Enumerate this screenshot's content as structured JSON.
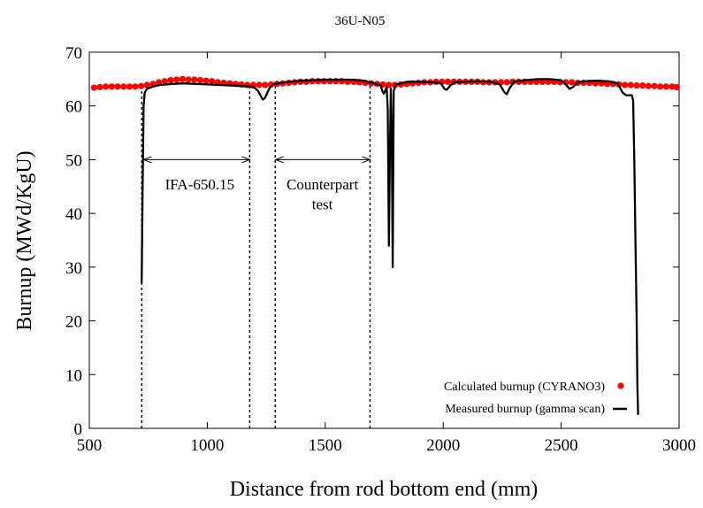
{
  "chart_data": {
    "type": "line",
    "title": "36U-N05",
    "xlabel": "Distance from rod bottom end (mm)",
    "ylabel": "Burnup (MWd/KgU)",
    "xlim": [
      500,
      3000
    ],
    "ylim": [
      0,
      70
    ],
    "xticks": [
      "500",
      "1000",
      "1500",
      "2000",
      "2500",
      "3000"
    ],
    "yticks": [
      "0",
      "10",
      "20",
      "30",
      "40",
      "50",
      "60",
      "70"
    ],
    "grid": false,
    "legend": "bottom-right",
    "series": [
      {
        "name": "Calculated burnup (CYRANO3)",
        "kind": "points",
        "color": "#ff0000",
        "x": [
          520,
          545,
          570,
          595,
          620,
          645,
          670,
          695,
          720,
          745,
          770,
          795,
          820,
          845,
          870,
          895,
          920,
          945,
          970,
          995,
          1020,
          1045,
          1070,
          1095,
          1120,
          1145,
          1170,
          1195,
          1220,
          1245,
          1270,
          1295,
          1320,
          1345,
          1370,
          1395,
          1420,
          1445,
          1470,
          1495,
          1520,
          1545,
          1570,
          1595,
          1620,
          1645,
          1670,
          1695,
          1720,
          1745,
          1770,
          1795,
          1820,
          1845,
          1870,
          1895,
          1920,
          1945,
          1970,
          1995,
          2020,
          2045,
          2070,
          2095,
          2120,
          2145,
          2170,
          2195,
          2220,
          2245,
          2270,
          2295,
          2320,
          2345,
          2370,
          2395,
          2420,
          2445,
          2470,
          2495,
          2520,
          2545,
          2570,
          2595,
          2620,
          2645,
          2670,
          2695,
          2720,
          2745,
          2770,
          2795,
          2820,
          2845,
          2870,
          2895,
          2920,
          2945,
          2970,
          2990
        ],
        "y": [
          63.4,
          63.5,
          63.6,
          63.6,
          63.6,
          63.6,
          63.6,
          63.6,
          63.7,
          63.9,
          64.1,
          64.4,
          64.6,
          64.8,
          64.9,
          65.0,
          64.9,
          64.9,
          64.8,
          64.7,
          64.6,
          64.4,
          64.3,
          64.2,
          64.1,
          64.0,
          63.9,
          63.9,
          63.9,
          63.9,
          64.0,
          64.1,
          64.2,
          64.3,
          64.4,
          64.5,
          64.5,
          64.6,
          64.6,
          64.6,
          64.6,
          64.6,
          64.6,
          64.5,
          64.5,
          64.4,
          64.3,
          64.2,
          64.1,
          64.0,
          63.9,
          63.9,
          64.0,
          64.1,
          64.2,
          64.3,
          64.4,
          64.4,
          64.5,
          64.5,
          64.5,
          64.5,
          64.5,
          64.5,
          64.5,
          64.5,
          64.4,
          64.4,
          64.4,
          64.4,
          64.4,
          64.5,
          64.5,
          64.5,
          64.5,
          64.5,
          64.5,
          64.5,
          64.5,
          64.4,
          64.4,
          64.4,
          64.3,
          64.3,
          64.3,
          64.2,
          64.2,
          64.1,
          64.1,
          64.0,
          63.9,
          63.9,
          63.8,
          63.8,
          63.7,
          63.7,
          63.6,
          63.6,
          63.6,
          63.5
        ]
      },
      {
        "name": "Measured burnup (gamma scan)",
        "kind": "line",
        "color": "#000000",
        "x": [
          722,
          726,
          730,
          735,
          745,
          770,
          800,
          850,
          900,
          950,
          1000,
          1050,
          1100,
          1150,
          1180,
          1200,
          1215,
          1225,
          1235,
          1245,
          1255,
          1265,
          1280,
          1300,
          1350,
          1400,
          1450,
          1500,
          1550,
          1600,
          1650,
          1700,
          1735,
          1742,
          1748,
          1754,
          1760,
          1765,
          1770,
          1774,
          1778,
          1782,
          1786,
          1790,
          1800,
          1850,
          1900,
          1950,
          1990,
          2005,
          2015,
          2030,
          2050,
          2100,
          2150,
          2200,
          2240,
          2260,
          2270,
          2280,
          2300,
          2350,
          2400,
          2450,
          2500,
          2520,
          2535,
          2550,
          2570,
          2600,
          2650,
          2700,
          2740,
          2760,
          2775,
          2790,
          2800,
          2805,
          2810,
          2815,
          2820,
          2823,
          2826
        ],
        "y": [
          27,
          45,
          60,
          62.5,
          63.2,
          63.6,
          63.9,
          64.1,
          64.2,
          64.1,
          64.0,
          63.9,
          63.8,
          63.7,
          63.6,
          63.4,
          62.8,
          62.0,
          61.2,
          61.5,
          62.5,
          63.4,
          64.0,
          64.2,
          64.5,
          64.7,
          64.8,
          64.9,
          64.9,
          64.9,
          64.8,
          64.3,
          63.8,
          62.8,
          62.3,
          62.8,
          63.5,
          59.5,
          34.0,
          51.0,
          63.2,
          55.0,
          30.0,
          62.8,
          64.0,
          64.5,
          64.5,
          64.4,
          64.2,
          63.2,
          63.0,
          63.8,
          64.4,
          64.5,
          64.6,
          64.5,
          64.0,
          62.5,
          62.2,
          63.2,
          64.5,
          64.8,
          65.0,
          65.0,
          64.8,
          64.0,
          63.2,
          63.5,
          64.4,
          64.6,
          64.7,
          64.6,
          64.2,
          62.5,
          62.0,
          62.0,
          62.0,
          61.0,
          50.0,
          35.0,
          20.0,
          8.0,
          2.5
        ]
      }
    ],
    "annotations": [
      {
        "text": "IFA-650.15",
        "x": 968,
        "y": 44.5,
        "span": [
          730,
          1180
        ]
      },
      {
        "text": "Counterpart",
        "x": 1488,
        "y": 44.5,
        "span": [
          1290,
          1690
        ]
      },
      {
        "text": "test",
        "x": 1488,
        "y": 40.8
      }
    ],
    "vlines_x": [
      722,
      1180,
      1288,
      1690
    ]
  },
  "legend": {
    "calculated": "Calculated burnup (CYRANO3)",
    "measured": "Measured burnup (gamma scan)"
  }
}
